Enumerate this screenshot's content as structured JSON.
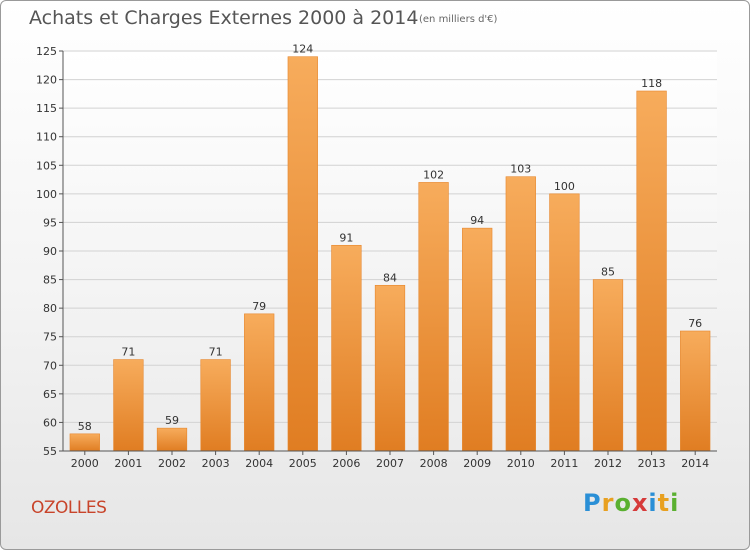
{
  "header": {
    "title": "Achats et Charges Externes 2000 à 2014",
    "unit": "(en milliers d'€)"
  },
  "footer": {
    "location": "OZOLLES",
    "logo_letters": [
      "P",
      "r",
      "o",
      "x",
      "i",
      "t",
      "i"
    ],
    "logo_colors": [
      "#2a8fd6",
      "#e8a020",
      "#5ab030",
      "#d63a3a",
      "#2a8fd6",
      "#e8a020",
      "#5ab030"
    ]
  },
  "chart_data": {
    "type": "bar",
    "title": "Achats et Charges Externes 2000 à 2014",
    "subtitle": "(en milliers d'€)",
    "xlabel": "",
    "ylabel": "",
    "categories": [
      "2000",
      "2001",
      "2002",
      "2003",
      "2004",
      "2005",
      "2006",
      "2007",
      "2008",
      "2009",
      "2010",
      "2011",
      "2012",
      "2013",
      "2014"
    ],
    "values": [
      58,
      71,
      59,
      71,
      79,
      124,
      91,
      84,
      102,
      94,
      103,
      100,
      85,
      118,
      76
    ],
    "ylim": [
      55,
      125
    ],
    "yticks": [
      55,
      60,
      65,
      70,
      75,
      80,
      85,
      90,
      95,
      100,
      105,
      110,
      115,
      120,
      125
    ],
    "grid": true,
    "bar_color": "#f0943a",
    "bar_color_light": "#f7ac5c",
    "bar_color_dark": "#e07d22"
  }
}
